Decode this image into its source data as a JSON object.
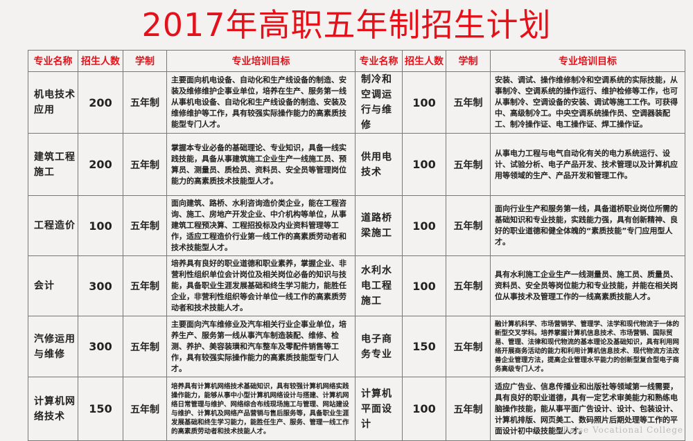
{
  "title": "2017年高职五年制招生计划",
  "headers": [
    "专业名称",
    "招生人数",
    "学制",
    "专业培训目标",
    "专业名称",
    "招生人数",
    "学制",
    "专业培训目标"
  ],
  "rows": [
    {
      "left": {
        "name": "机电技术应用",
        "count": "200",
        "system": "五年制",
        "goal": "主要面向机电设备、自动化和生产线设备的制造、安装及维修维护企事业单位，培养在生产、服务第一线从事机电设备、自动化和生产线设备的制造、安装及维修维护等工作，具有较强实际操作能力的高素质技能型专门人才。"
      },
      "right": {
        "name": "制冷和空调运行与维修",
        "count": "100",
        "system": "五年制",
        "goal": "安装、调试、操作维修制冷和空调系统的实际技能，从事制冷、空调系统的操作运行、维护检修等工作，也可从事制冷、空调设备的安装、调试等施工工作。可获得中、高级制冷工。中央空调系统操作员、空调器装配工、制冷操作证、电工操作证、焊工操作证。"
      }
    },
    {
      "left": {
        "name": "建筑工程施工",
        "count": "200",
        "system": "五年制",
        "goal": "掌握本专业必备的基础理论、专业知识，具备一线实践技能，具备从事建筑施工企业生产一线施工员、预算员、测量员、质检员、资料员、安全员等管理岗位能力的高素质技术技能型人才。"
      },
      "right": {
        "name": "供用电技术",
        "count": "100",
        "system": "五年制",
        "goal": "从事电力工程与电气自动化有关的电力系统运行、设计、试验分析、电子产品开发、技术管理以及计算机应用等领域的生产、产品开发和管理工作。"
      }
    },
    {
      "left": {
        "name": "工程造价",
        "count": "100",
        "system": "五年制",
        "goal": "面向建筑、路桥、水利咨询造价类企业，能在工程咨询、施工、房地产开发企业、中介机构等单位，从事建筑工程预决算、工程招投标及内业资料管理等工作，适应工程造价行业第一线工作的高素质劳动者和技术技能型人才。"
      },
      "right": {
        "name": "道路桥梁施工",
        "count": "100",
        "system": "五年制",
        "goal": "面向行业生产和服务第一线，具备道桥职业岗位所需的基础知识和专业技能，实践能力强，具有创新精神、良好的职业道德和健全体魄的“素质技能”专门应用型人才。"
      }
    },
    {
      "left": {
        "name": "会计",
        "count": "300",
        "system": "五年制",
        "goal": "培养具有良好的职业道德和职业素养，掌握企业、非营利性组织单位会计岗位及相关岗位必备的知识与技能，具备职业生涯发展基础和终生学习能力，能胜任企业，非营利性组织等会计单位一线工作的高素质劳动者和技术技能人才。"
      },
      "right": {
        "name": "水利水电工程施工",
        "count": "100",
        "system": "五年制",
        "goal": "具有水利施工企业生产一线测量员、施工员、质量员、资料员、安全员等岗位能力和专业技能，并能在相关岗位从事技术及管理工作的一线高素质技能人才。"
      }
    },
    {
      "left": {
        "name": "汽修运用与维修",
        "count": "300",
        "system": "五年制",
        "goal": "主要面向汽车维修业及汽车相关行业企事业单位，培养生产、服务第一线从事汽车制造装配、维修、检测、养护、美容装璜和汽车整车及零配件销售等工作，具有较强实际操作能力的高素质技能型专门人才。"
      },
      "right": {
        "name": "电子商务专业",
        "count": "150",
        "system": "五年制",
        "goal": "融计算机科学、市场营销学、管理学、法学和现代物流于一体的新型交叉学科。培养掌握计算机信息技术、市场营销、国际贸易、管理、法律和现代物流的基本理论及基础知识，具有利用网络开展商务活动的能力和利用计算机信息技术、现代物流方法改善企业管理方法，提高企业管理水平能力的创新型复合型电子商务高级专门人才。"
      }
    },
    {
      "left": {
        "name": "计算机网络技术",
        "count": "150",
        "system": "五年制",
        "goal": "培养具有计算机网络技术基础知识，具有较强计算机网络实践操作能力，能够从事中小型计算机网络设计与搭建、计算机网络日常管理与维护、网络综合布线现场施工与管理、网站建设与维护、计算机及网络产品营销与售后服务等，具备职业生涯发展基础和终生学习能力，能胜任生产、服务、管理一线工作的高素质劳动者和技术技能人才。"
      },
      "right": {
        "name": "计算机平面设计",
        "count": "100",
        "system": "五年制",
        "goal": "适应广告业、信息传播业和出版社等领域第一线需要，具有良好的职业道德，具有一定艺术审美能力和熟练电脑操作技能，能从事平面广告设计、设计、包装设计、计算机排版、网页美工、数码照片后期处理等工作的平面设计初中级技能型人才。"
      }
    }
  ],
  "watermark": "Baise Vocational College",
  "colors": {
    "title": "#e3121a",
    "header": "#e3121a",
    "background": "#f4f2f0"
  }
}
